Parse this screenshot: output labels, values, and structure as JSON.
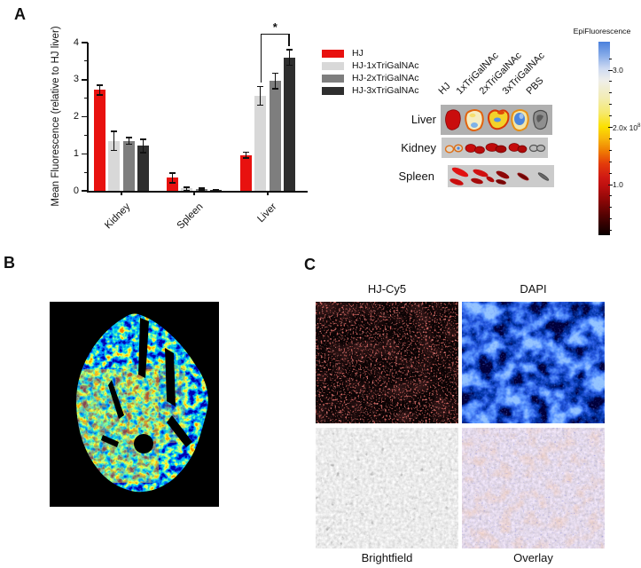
{
  "figure": {
    "panel_a_label": "A",
    "panel_b_label": "B",
    "panel_c_label": "C"
  },
  "chart_data": {
    "type": "bar",
    "title": "",
    "xlabel": "",
    "ylabel": "Mean Fluorescence (relative to HJ liver)",
    "ylim": [
      0,
      4
    ],
    "yticks": [
      0,
      1,
      2,
      3,
      4
    ],
    "grid": false,
    "legend_position": "right",
    "categories": [
      "Kidney",
      "Spleen",
      "Liver"
    ],
    "series": [
      {
        "name": "HJ",
        "color": "#e8110f",
        "values": [
          2.72,
          0.35,
          0.97
        ],
        "errors": [
          0.13,
          0.13,
          0.08
        ]
      },
      {
        "name": "HJ-1xTriGalNAc",
        "color": "#d8d8d8",
        "values": [
          1.35,
          0.06,
          2.57
        ],
        "errors": [
          0.26,
          0.04,
          0.25
        ]
      },
      {
        "name": "HJ-2xTriGalNAc",
        "color": "#7e7e7e",
        "values": [
          1.35,
          0.05,
          2.97
        ],
        "errors": [
          0.09,
          0.02,
          0.21
        ]
      },
      {
        "name": "HJ-3xTriGalNAc",
        "color": "#2e2e2e",
        "values": [
          1.21,
          0.02,
          3.6
        ],
        "errors": [
          0.18,
          0.02,
          0.21
        ]
      }
    ],
    "significance": {
      "label": "*",
      "category_index": 2,
      "from_series": 1,
      "to_series": 3
    }
  },
  "organ_images": {
    "column_labels": [
      "HJ",
      "1xTriGalNAc",
      "2xTriGalNAc",
      "3xTriGalNAc",
      "PBS"
    ],
    "row_labels": [
      "Liver",
      "Kidney",
      "Spleen"
    ]
  },
  "colorbar": {
    "title": "EpiFluorescence",
    "tick_labels": [
      "3.0",
      "2.0",
      "1.0"
    ],
    "tick_values": [
      3.0,
      2.0,
      1.0
    ],
    "multiplier_base": "x 10",
    "multiplier_exp": "8"
  },
  "panel_c": {
    "top_labels": [
      "HJ-Cy5",
      "DAPI"
    ],
    "bottom_labels": [
      "Brightfield",
      "Overlay"
    ]
  }
}
